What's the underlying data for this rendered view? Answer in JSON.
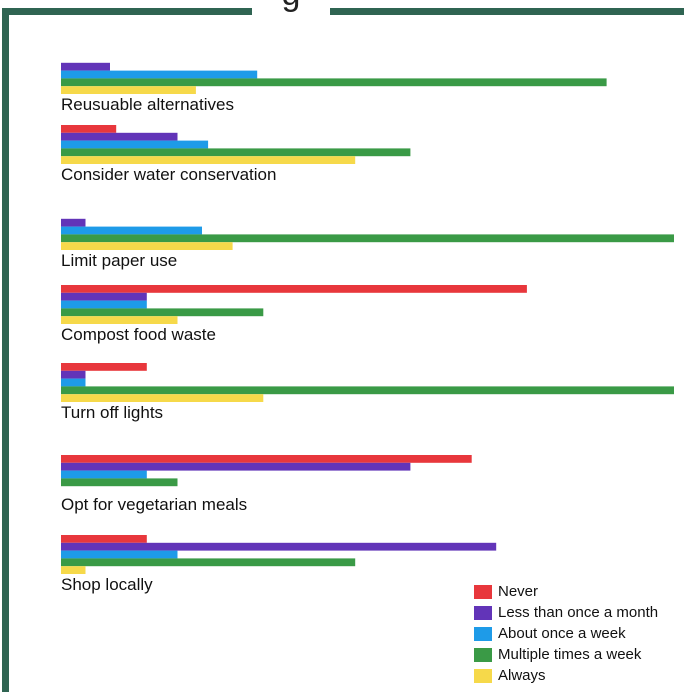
{
  "chart_data": {
    "type": "bar",
    "orientation": "horizontal",
    "title": "g",
    "categories": [
      "Reusuable alternatives",
      "Consider water conservation",
      "Limit paper use",
      "Compost food waste",
      "Turn off lights",
      "Opt for vegetarian meals",
      "Shop locally"
    ],
    "series": [
      {
        "name": "Never",
        "color": "#e8373c",
        "values": [
          0,
          9,
          0,
          76,
          14,
          67,
          14
        ]
      },
      {
        "name": "Less than once a month",
        "color": "#6234b8",
        "values": [
          8,
          19,
          4,
          14,
          4,
          57,
          71
        ]
      },
      {
        "name": "About once a week",
        "color": "#1e9be8",
        "values": [
          32,
          24,
          23,
          14,
          4,
          14,
          19
        ]
      },
      {
        "name": "Multiple times a week",
        "color": "#3a9a46",
        "values": [
          89,
          57,
          100,
          33,
          100,
          19,
          48
        ]
      },
      {
        "name": "Always",
        "color": "#f6d94a",
        "values": [
          22,
          48,
          28,
          19,
          33,
          0,
          4
        ]
      }
    ],
    "xlim": [
      0,
      100
    ],
    "grid": false,
    "legend_position": "bottom-right"
  }
}
